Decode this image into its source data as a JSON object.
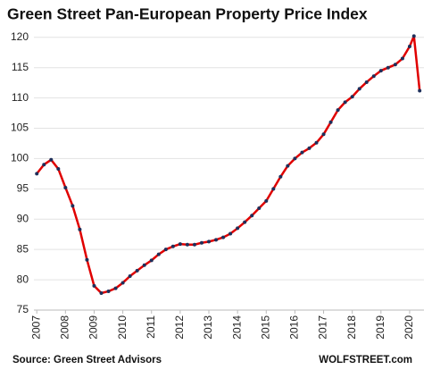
{
  "chart_data": {
    "type": "line",
    "title": "Green Street Pan-European Property Price Index",
    "source": "Source: Green Street Advisors",
    "credit": "WOLFSTREET.com",
    "x": [
      2007.0,
      2007.25,
      2007.5,
      2007.75,
      2008.0,
      2008.25,
      2008.5,
      2008.75,
      2009.0,
      2009.25,
      2009.5,
      2009.75,
      2010.0,
      2010.25,
      2010.5,
      2010.75,
      2011.0,
      2011.25,
      2011.5,
      2011.75,
      2012.0,
      2012.25,
      2012.5,
      2012.75,
      2013.0,
      2013.25,
      2013.5,
      2013.75,
      2014.0,
      2014.25,
      2014.5,
      2014.75,
      2015.0,
      2015.25,
      2015.5,
      2015.75,
      2016.0,
      2016.25,
      2016.5,
      2016.75,
      2017.0,
      2017.25,
      2017.5,
      2017.75,
      2018.0,
      2018.25,
      2018.5,
      2018.75,
      2019.0,
      2019.25,
      2019.5,
      2019.75,
      2020.0,
      2020.15,
      2020.35
    ],
    "series": [
      {
        "name": "Index",
        "color": "#e00000",
        "marker_color": "#1f2f5a",
        "values": [
          97.5,
          99,
          99.8,
          98.3,
          95.2,
          92.2,
          88.3,
          83.3,
          79,
          77.8,
          78.1,
          78.6,
          79.5,
          80.6,
          81.5,
          82.4,
          83.2,
          84.2,
          85,
          85.5,
          85.9,
          85.8,
          85.8,
          86.1,
          86.3,
          86.6,
          87,
          87.6,
          88.5,
          89.5,
          90.6,
          91.8,
          93,
          95,
          97,
          98.8,
          100,
          101,
          101.7,
          102.6,
          104,
          106,
          108,
          109.3,
          110.2,
          111.5,
          112.6,
          113.6,
          114.5,
          115,
          115.5,
          116.5,
          118.5,
          120.2,
          111.2
        ]
      }
    ],
    "xlim": [
      2006.9,
      2020.5
    ],
    "xticks": [
      2007,
      2008,
      2009,
      2010,
      2011,
      2012,
      2013,
      2014,
      2015,
      2016,
      2017,
      2018,
      2019,
      2020
    ],
    "ylim": [
      75,
      121
    ],
    "yticks": [
      75,
      80,
      85,
      90,
      95,
      100,
      105,
      110,
      115,
      120
    ],
    "grid": true
  }
}
